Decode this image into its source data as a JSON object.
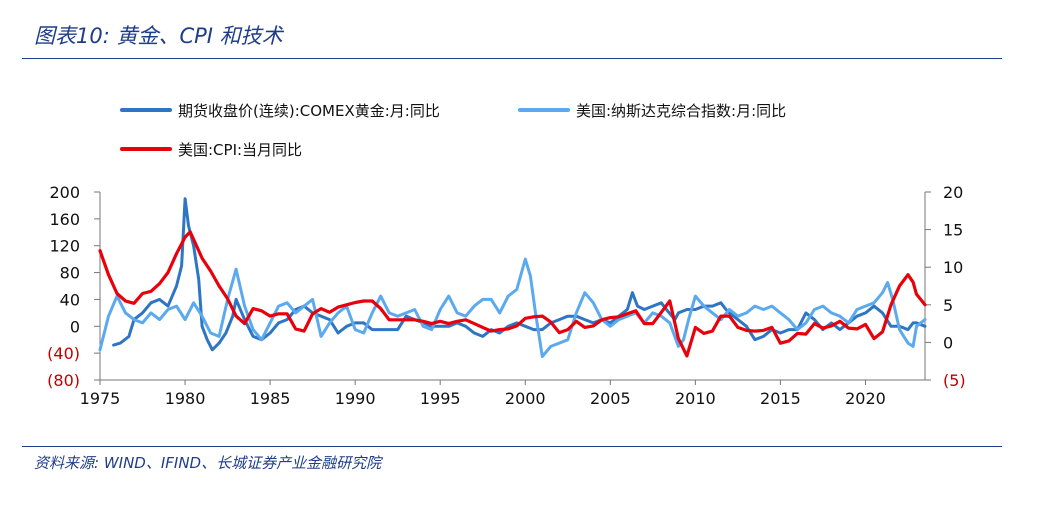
{
  "figure_title": "图表10:  黄金、CPI 和技术",
  "source_note": "资料来源:  WIND、IFIND、长城证券产业金融研究院",
  "chart_data": {
    "type": "line",
    "title": "",
    "xlabel": "",
    "ylabel": "",
    "x_range": [
      1975,
      2023.5
    ],
    "x_ticks": [
      1975,
      1980,
      1985,
      1990,
      1995,
      2000,
      2005,
      2010,
      2015,
      2020
    ],
    "x_tick_labels": [
      "1975",
      "1980",
      "1985",
      "1990",
      "1995",
      "2000",
      "2005",
      "2010",
      "2015",
      "2020"
    ],
    "ylim_left": [
      -80,
      200
    ],
    "y_left_ticks": [
      200,
      160,
      120,
      80,
      40,
      0,
      -40,
      -80
    ],
    "y_left_tick_labels": [
      "200",
      "160",
      "120",
      "80",
      "40",
      "0",
      "(40)",
      "(80)"
    ],
    "ylim_right": [
      -5,
      20
    ],
    "y_right_ticks": [
      20,
      15,
      10,
      5,
      0,
      -5
    ],
    "y_right_tick_labels": [
      "20",
      "15",
      "10",
      "5",
      "0",
      "(5)"
    ],
    "negative_tick_color": "#c00000",
    "legend_placement": "top",
    "series": [
      {
        "name": "期货收盘价(连续):COMEX黄金:月:同比",
        "color": "#2e75c4",
        "axis": "left",
        "x": [
          1975.8,
          1976.2,
          1976.7,
          1977.0,
          1977.5,
          1978.0,
          1978.5,
          1979.0,
          1979.5,
          1979.8,
          1980.0,
          1980.2,
          1980.5,
          1980.8,
          1981.0,
          1981.3,
          1981.6,
          1982.0,
          1982.4,
          1982.8,
          1983.0,
          1983.5,
          1984.0,
          1984.5,
          1985.0,
          1985.5,
          1986.0,
          1986.5,
          1987.0,
          1987.5,
          1988.0,
          1988.5,
          1989.0,
          1989.5,
          1990.0,
          1990.5,
          1991.0,
          1991.5,
          1992.0,
          1992.5,
          1993.0,
          1993.5,
          1994.0,
          1994.5,
          1995.0,
          1995.5,
          1996.0,
          1996.5,
          1997.0,
          1997.5,
          1998.0,
          1998.5,
          1999.0,
          1999.5,
          2000.0,
          2000.5,
          2001.0,
          2001.5,
          2002.0,
          2002.5,
          2003.0,
          2003.5,
          2004.0,
          2004.5,
          2005.0,
          2005.5,
          2006.0,
          2006.3,
          2006.6,
          2007.0,
          2007.5,
          2008.0,
          2008.3,
          2008.8,
          2009.0,
          2009.5,
          2010.0,
          2010.5,
          2011.0,
          2011.5,
          2011.8,
          2012.0,
          2012.5,
          2013.0,
          2013.5,
          2014.0,
          2014.5,
          2015.0,
          2015.5,
          2016.0,
          2016.5,
          2017.0,
          2017.5,
          2018.0,
          2018.5,
          2019.0,
          2019.5,
          2020.0,
          2020.5,
          2021.0,
          2021.5,
          2022.0,
          2022.5,
          2022.8,
          2023.0,
          2023.5
        ],
        "y": [
          -28,
          -25,
          -15,
          10,
          20,
          35,
          40,
          30,
          60,
          90,
          190,
          150,
          120,
          70,
          0,
          -20,
          -35,
          -25,
          -10,
          15,
          40,
          10,
          -15,
          -20,
          -10,
          5,
          10,
          25,
          30,
          20,
          15,
          10,
          -10,
          0,
          5,
          5,
          -5,
          -5,
          -5,
          -5,
          15,
          10,
          5,
          0,
          0,
          0,
          5,
          0,
          -10,
          -15,
          -5,
          -10,
          0,
          5,
          0,
          -5,
          -5,
          5,
          10,
          15,
          15,
          10,
          5,
          10,
          5,
          15,
          25,
          50,
          30,
          25,
          30,
          35,
          25,
          10,
          20,
          25,
          25,
          30,
          30,
          35,
          25,
          20,
          10,
          0,
          -20,
          -15,
          -5,
          -10,
          -5,
          -5,
          20,
          10,
          -5,
          5,
          -5,
          5,
          15,
          20,
          30,
          20,
          0,
          0,
          -5,
          5,
          5,
          0
        ]
      },
      {
        "name": "美国:纳斯达克综合指数:月:同比",
        "color": "#5ba9ee",
        "axis": "left",
        "x": [
          1975.0,
          1975.5,
          1976.0,
          1976.5,
          1977.0,
          1977.5,
          1978.0,
          1978.5,
          1979.0,
          1979.5,
          1980.0,
          1980.5,
          1981.0,
          1981.5,
          1982.0,
          1982.5,
          1983.0,
          1983.5,
          1984.0,
          1984.5,
          1985.0,
          1985.5,
          1986.0,
          1986.5,
          1987.0,
          1987.5,
          1988.0,
          1988.5,
          1989.0,
          1989.5,
          1990.0,
          1990.5,
          1991.0,
          1991.5,
          1992.0,
          1992.5,
          1993.0,
          1993.5,
          1994.0,
          1994.5,
          1995.0,
          1995.5,
          1996.0,
          1996.5,
          1997.0,
          1997.5,
          1998.0,
          1998.5,
          1999.0,
          1999.5,
          2000.0,
          2000.3,
          2000.6,
          2001.0,
          2001.5,
          2002.0,
          2002.5,
          2003.0,
          2003.5,
          2004.0,
          2004.5,
          2005.0,
          2005.5,
          2006.0,
          2006.5,
          2007.0,
          2007.5,
          2008.0,
          2008.5,
          2009.0,
          2009.3,
          2009.6,
          2010.0,
          2010.5,
          2011.0,
          2011.5,
          2012.0,
          2012.5,
          2013.0,
          2013.5,
          2014.0,
          2014.5,
          2015.0,
          2015.5,
          2016.0,
          2016.5,
          2017.0,
          2017.5,
          2018.0,
          2018.5,
          2019.0,
          2019.5,
          2020.0,
          2020.5,
          2021.0,
          2021.3,
          2021.6,
          2022.0,
          2022.5,
          2022.8,
          2023.0,
          2023.5
        ],
        "y": [
          -35,
          15,
          45,
          20,
          10,
          5,
          20,
          10,
          25,
          30,
          10,
          35,
          15,
          -10,
          -15,
          40,
          85,
          30,
          -5,
          -20,
          5,
          30,
          35,
          20,
          30,
          40,
          -15,
          5,
          20,
          30,
          -5,
          -10,
          20,
          45,
          20,
          15,
          20,
          25,
          0,
          -5,
          25,
          45,
          20,
          15,
          30,
          40,
          40,
          20,
          45,
          55,
          100,
          75,
          20,
          -45,
          -30,
          -25,
          -20,
          20,
          50,
          35,
          10,
          0,
          10,
          15,
          20,
          5,
          20,
          15,
          5,
          -30,
          -20,
          10,
          45,
          30,
          20,
          10,
          25,
          15,
          20,
          30,
          25,
          30,
          20,
          10,
          -5,
          5,
          25,
          30,
          20,
          15,
          5,
          25,
          30,
          35,
          50,
          65,
          40,
          -5,
          -25,
          -30,
          0,
          10
        ]
      },
      {
        "name": "美国:CPI:当月同比",
        "color": "#e8000b",
        "axis": "right",
        "x": [
          1975.0,
          1975.5,
          1976.0,
          1976.5,
          1977.0,
          1977.5,
          1978.0,
          1978.5,
          1979.0,
          1979.5,
          1980.0,
          1980.3,
          1980.7,
          1981.0,
          1981.5,
          1982.0,
          1982.5,
          1983.0,
          1983.5,
          1984.0,
          1984.5,
          1985.0,
          1985.5,
          1986.0,
          1986.5,
          1987.0,
          1987.5,
          1988.0,
          1988.5,
          1989.0,
          1989.5,
          1990.0,
          1990.5,
          1991.0,
          1991.5,
          1992.0,
          1992.5,
          1993.0,
          1993.5,
          1994.0,
          1994.5,
          1995.0,
          1995.5,
          1996.0,
          1996.5,
          1997.0,
          1997.5,
          1998.0,
          1998.5,
          1999.0,
          1999.5,
          2000.0,
          2000.5,
          2001.0,
          2001.5,
          2002.0,
          2002.5,
          2003.0,
          2003.5,
          2004.0,
          2004.5,
          2005.0,
          2005.5,
          2006.0,
          2006.5,
          2007.0,
          2007.5,
          2008.0,
          2008.5,
          2009.0,
          2009.5,
          2010.0,
          2010.5,
          2011.0,
          2011.5,
          2012.0,
          2012.5,
          2013.0,
          2013.5,
          2014.0,
          2014.5,
          2015.0,
          2015.5,
          2016.0,
          2016.5,
          2017.0,
          2017.5,
          2018.0,
          2018.5,
          2019.0,
          2019.5,
          2020.0,
          2020.5,
          2021.0,
          2021.5,
          2022.0,
          2022.5,
          2022.8,
          2023.0,
          2023.5
        ],
        "y": [
          12.2,
          9.0,
          6.5,
          5.5,
          5.2,
          6.5,
          6.8,
          7.8,
          9.3,
          11.8,
          14.0,
          14.7,
          12.7,
          11.2,
          9.5,
          7.5,
          5.8,
          3.5,
          2.5,
          4.5,
          4.2,
          3.5,
          3.8,
          3.8,
          1.8,
          1.5,
          3.8,
          4.5,
          4.0,
          4.7,
          5.0,
          5.3,
          5.5,
          5.5,
          4.5,
          3.0,
          3.0,
          3.0,
          3.0,
          2.8,
          2.5,
          2.8,
          2.5,
          2.8,
          3.0,
          2.5,
          2.0,
          1.5,
          1.7,
          1.8,
          2.2,
          3.2,
          3.4,
          3.5,
          2.7,
          1.3,
          1.7,
          2.8,
          2.0,
          2.2,
          3.0,
          3.3,
          3.4,
          3.8,
          4.2,
          2.5,
          2.5,
          4.0,
          5.5,
          0.5,
          -1.8,
          2.0,
          1.2,
          1.5,
          3.5,
          3.5,
          2.0,
          1.6,
          1.5,
          1.6,
          2.0,
          -0.1,
          0.2,
          1.2,
          1.1,
          2.5,
          1.9,
          2.2,
          2.8,
          1.9,
          1.8,
          2.4,
          0.5,
          1.4,
          5.0,
          7.5,
          9.0,
          8.0,
          6.4,
          5.0
        ]
      }
    ]
  }
}
